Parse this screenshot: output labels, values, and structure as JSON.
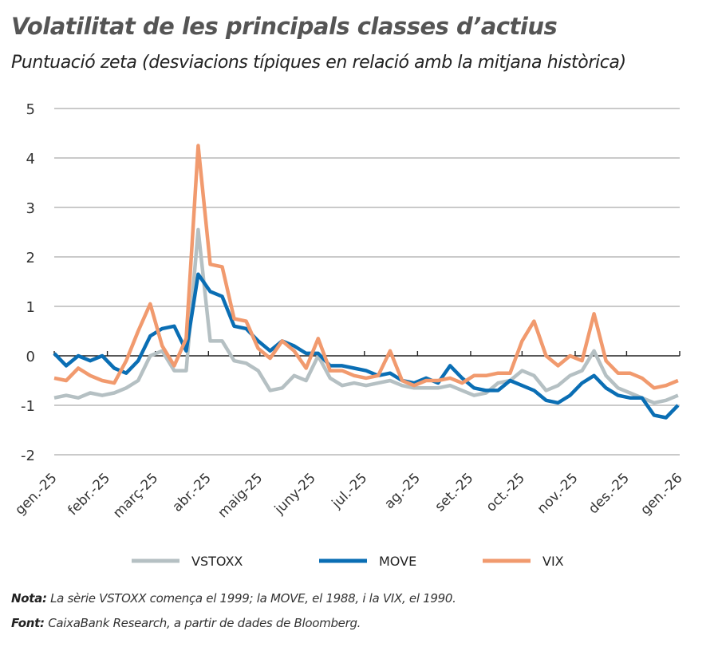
{
  "title": "Volatilitat de les principals classes d’actius",
  "subtitle": "Puntuació zeta (desviacions típiques en relació amb la mitjana històrica)",
  "notes": [
    {
      "label": "Nota:",
      "text": " La sèrie VSTOXX comença el 1999; la MOVE, el 1988, i la VIX, el 1990."
    },
    {
      "label": "Font:",
      "text": " CaixaBank Research, a partir de dades de Bloomberg."
    }
  ],
  "chart_data": {
    "type": "line",
    "title": "Volatilitat de les principals classes d’actius",
    "subtitle": "Puntuació zeta (desviacions típiques en relació amb la mitjana històrica)",
    "xlabel": "",
    "ylabel": "",
    "ylim": [
      -2,
      5
    ],
    "yticks": [
      "5",
      "4",
      "3",
      "2",
      "1",
      "0",
      "-1",
      "-2"
    ],
    "xticks": [
      "gen.-25",
      "febr.-25",
      "març-25",
      "abr.-25",
      "maig-25",
      "juny-25",
      "jul.-25",
      "ag.-25",
      "set.-25",
      "oct.-25",
      "nov.-25",
      "des.-25",
      "gen.-26"
    ],
    "grid": true,
    "legend": "bottom",
    "x": [
      "2025-01-01",
      "2025-01-08",
      "2025-01-15",
      "2025-01-22",
      "2025-01-29",
      "2025-02-05",
      "2025-02-12",
      "2025-02-19",
      "2025-02-26",
      "2025-03-05",
      "2025-03-12",
      "2025-03-19",
      "2025-03-26",
      "2025-04-02",
      "2025-04-09",
      "2025-04-16",
      "2025-04-23",
      "2025-04-30",
      "2025-05-07",
      "2025-05-14",
      "2025-05-21",
      "2025-05-28",
      "2025-06-04",
      "2025-06-11",
      "2025-06-18",
      "2025-06-25",
      "2025-07-02",
      "2025-07-09",
      "2025-07-16",
      "2025-07-23",
      "2025-07-30",
      "2025-08-06",
      "2025-08-13",
      "2025-08-20",
      "2025-08-27",
      "2025-09-03",
      "2025-09-10",
      "2025-09-17",
      "2025-09-24",
      "2025-10-01",
      "2025-10-08",
      "2025-10-15",
      "2025-10-22",
      "2025-10-29",
      "2025-11-05",
      "2025-11-12",
      "2025-11-19",
      "2025-11-26",
      "2025-12-03",
      "2025-12-10",
      "2025-12-17",
      "2025-12-24",
      "2025-12-31"
    ],
    "series": [
      {
        "name": "VSTOXX",
        "color": "#b5c0c3",
        "values": [
          -0.85,
          -0.8,
          -0.85,
          -0.75,
          -0.8,
          -0.75,
          -0.65,
          -0.5,
          0.0,
          0.1,
          -0.3,
          -0.3,
          2.55,
          0.3,
          0.3,
          -0.1,
          -0.15,
          -0.3,
          -0.7,
          -0.65,
          -0.4,
          -0.5,
          0.0,
          -0.45,
          -0.6,
          -0.55,
          -0.6,
          -0.55,
          -0.5,
          -0.6,
          -0.65,
          -0.65,
          -0.65,
          -0.6,
          -0.7,
          -0.8,
          -0.75,
          -0.55,
          -0.5,
          -0.3,
          -0.4,
          -0.7,
          -0.6,
          -0.4,
          -0.3,
          0.1,
          -0.4,
          -0.65,
          -0.75,
          -0.85,
          -0.95,
          -0.9,
          -0.8
        ]
      },
      {
        "name": "MOVE",
        "color": "#0a6eb4",
        "values": [
          0.05,
          -0.2,
          0.0,
          -0.1,
          0.0,
          -0.25,
          -0.35,
          -0.1,
          0.4,
          0.55,
          0.6,
          0.1,
          1.65,
          1.3,
          1.2,
          0.6,
          0.55,
          0.3,
          0.1,
          0.3,
          0.2,
          0.05,
          0.05,
          -0.2,
          -0.2,
          -0.25,
          -0.3,
          -0.4,
          -0.35,
          -0.5,
          -0.55,
          -0.45,
          -0.55,
          -0.2,
          -0.45,
          -0.65,
          -0.7,
          -0.7,
          -0.5,
          -0.6,
          -0.7,
          -0.9,
          -0.95,
          -0.8,
          -0.55,
          -0.4,
          -0.65,
          -0.8,
          -0.85,
          -0.85,
          -1.2,
          -1.25,
          -1.0
        ]
      },
      {
        "name": "VIX",
        "color": "#f19a6e",
        "values": [
          -0.45,
          -0.5,
          -0.25,
          -0.4,
          -0.5,
          -0.55,
          -0.1,
          0.5,
          1.05,
          0.2,
          -0.2,
          0.35,
          4.25,
          1.85,
          1.8,
          0.75,
          0.7,
          0.15,
          -0.05,
          0.3,
          0.1,
          -0.25,
          0.35,
          -0.3,
          -0.3,
          -0.4,
          -0.45,
          -0.4,
          0.1,
          -0.5,
          -0.6,
          -0.5,
          -0.5,
          -0.45,
          -0.55,
          -0.4,
          -0.4,
          -0.35,
          -0.35,
          0.3,
          0.7,
          0.0,
          -0.2,
          0.0,
          -0.1,
          0.85,
          -0.1,
          -0.35,
          -0.35,
          -0.45,
          -0.65,
          -0.6,
          -0.5
        ]
      }
    ]
  }
}
